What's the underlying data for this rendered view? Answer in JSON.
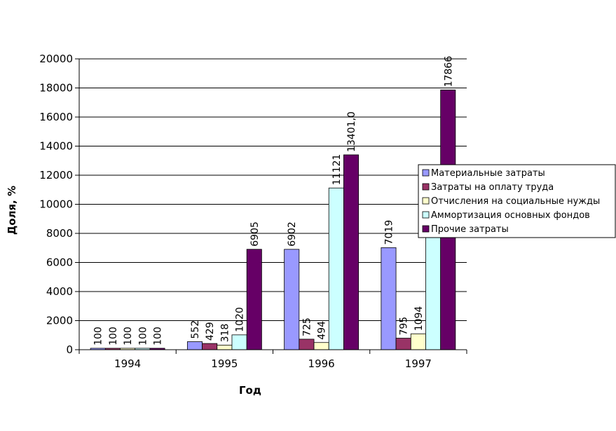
{
  "chart_data": {
    "type": "bar",
    "title": "",
    "xlabel": "Год",
    "ylabel": "Доля, %",
    "ylim": [
      0,
      20000
    ],
    "yticks": [
      0,
      2000,
      4000,
      6000,
      8000,
      10000,
      12000,
      14000,
      16000,
      18000,
      20000
    ],
    "grid": true,
    "legend_position": "right",
    "categories": [
      "1994",
      "1995",
      "1996",
      "1997"
    ],
    "series": [
      {
        "name": "Материальные затраты",
        "color": "#9999ff",
        "values": [
          100,
          552,
          6902,
          7019
        ],
        "labels": [
          "100",
          "552",
          "6902",
          "7019"
        ]
      },
      {
        "name": "Затраты на оплату труда",
        "color": "#993366",
        "values": [
          100,
          429,
          725,
          795
        ],
        "labels": [
          "100",
          "429",
          "725",
          "795"
        ]
      },
      {
        "name": "Отчисления на социальные нужды",
        "color": "#ffffcc",
        "values": [
          100,
          318,
          494,
          1094
        ],
        "labels": [
          "100",
          "318",
          "494",
          "1094"
        ]
      },
      {
        "name": "Аммортизация основных фондов",
        "color": "#ccffff",
        "values": [
          100,
          1020,
          11121,
          9000
        ],
        "labels": [
          "100",
          "1020",
          "11121",
          ""
        ]
      },
      {
        "name": "Прочие затраты",
        "color": "#660066",
        "values": [
          100,
          6905,
          13401,
          17866
        ],
        "labels": [
          "100",
          "6905",
          "13401,0",
          "17866"
        ]
      }
    ]
  }
}
